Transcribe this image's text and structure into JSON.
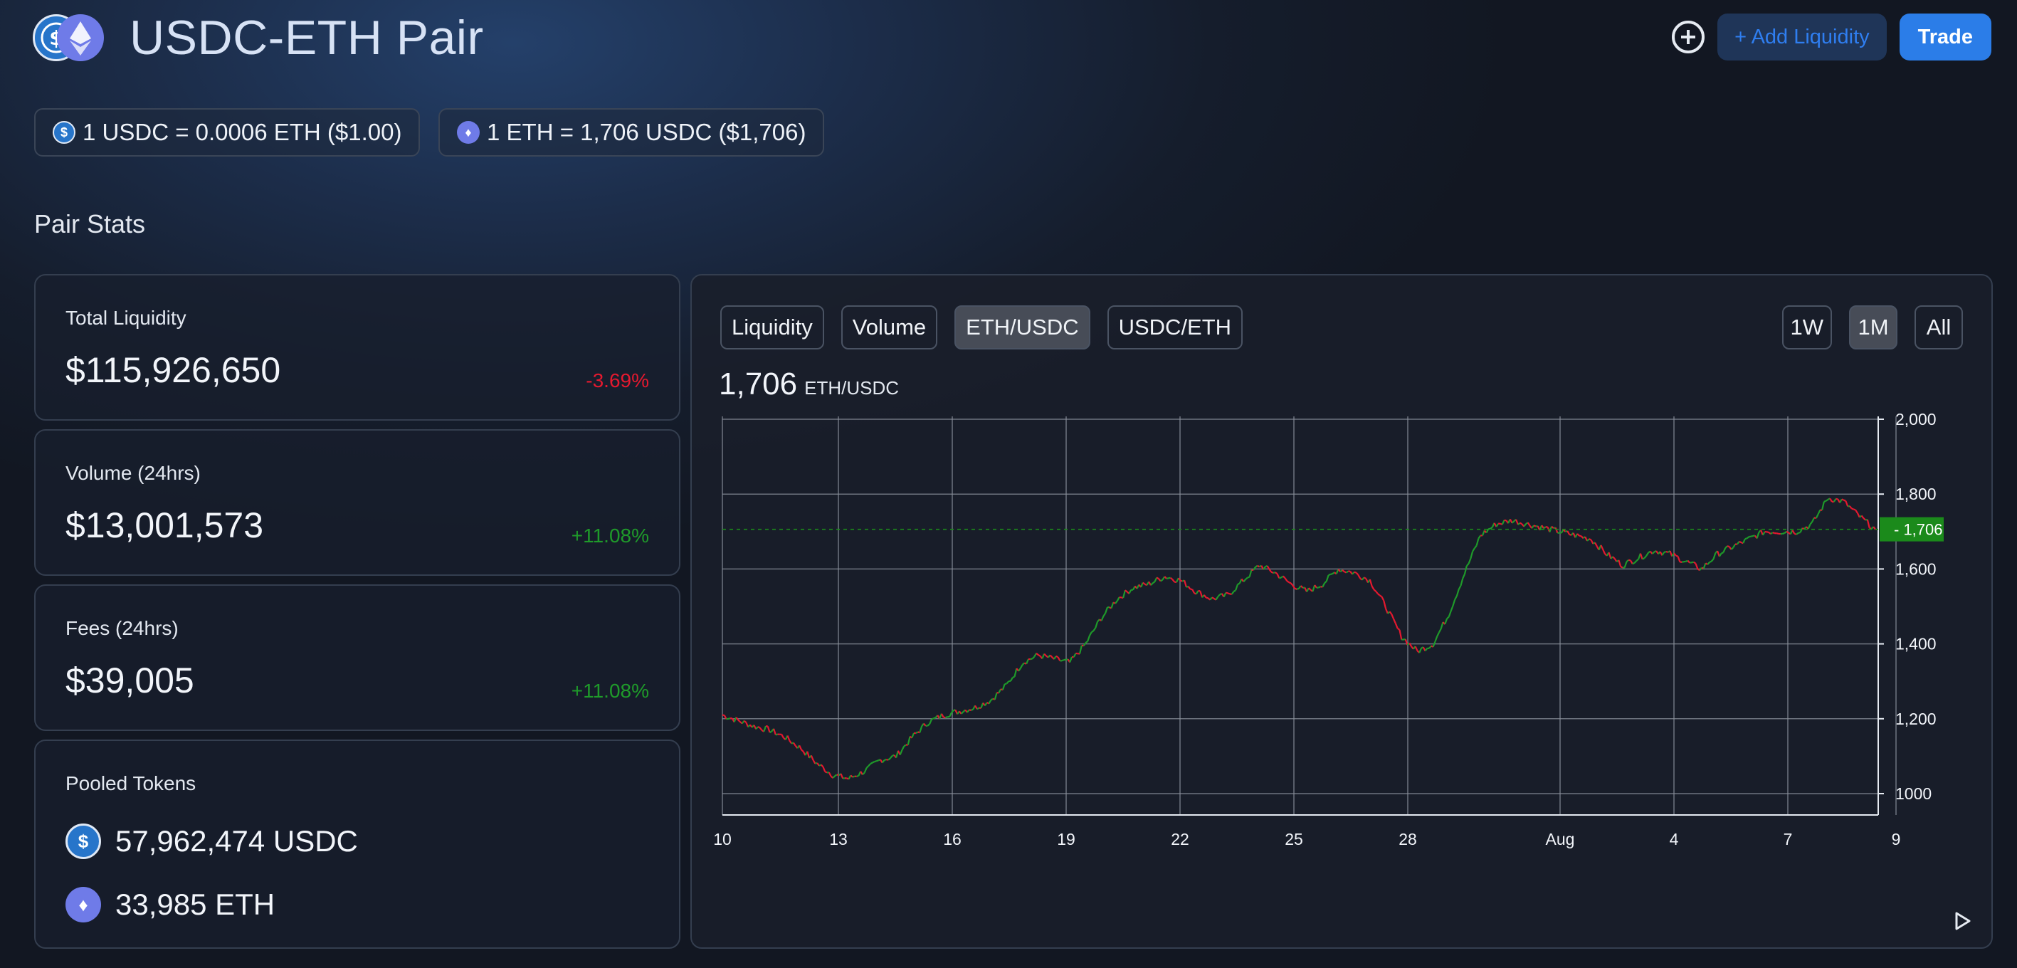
{
  "header": {
    "title": "USDC-ETH Pair",
    "add_liquidity_label": "+ Add Liquidity",
    "trade_label": "Trade"
  },
  "prices": {
    "usdc_rate": "1 USDC = 0.0006 ETH ($1.00)",
    "eth_rate": "1 ETH = 1,706 USDC ($1,706)"
  },
  "section_title": "Pair Stats",
  "stats": {
    "liquidity": {
      "label": "Total Liquidity",
      "value": "$115,926,650",
      "change": "-3.69%"
    },
    "volume": {
      "label": "Volume (24hrs)",
      "value": "$13,001,573",
      "change": "+11.08%"
    },
    "fees": {
      "label": "Fees (24hrs)",
      "value": "$39,005",
      "change": "+11.08%"
    }
  },
  "pooled": {
    "label": "Pooled Tokens",
    "usdc": "57,962,474 USDC",
    "eth": "33,985 ETH"
  },
  "chart_panel": {
    "tabs": [
      "Liquidity",
      "Volume",
      "ETH/USDC",
      "USDC/ETH"
    ],
    "active_tab": "ETH/USDC",
    "ranges": [
      "1W",
      "1M",
      "All"
    ],
    "active_range": "1M",
    "current_price": "1,706",
    "current_unit": "ETH/USDC"
  },
  "colors": {
    "up": "#1f9a2a",
    "down": "#e5192f",
    "accent": "#2b7de8",
    "price_marker": "#1b8a1b"
  },
  "icons": {
    "usdc": "usdc-coin-icon",
    "eth": "eth-coin-icon",
    "add": "plus-circle-icon",
    "play": "play-icon"
  },
  "chart_data": {
    "type": "line",
    "title": "",
    "xlabel": "",
    "ylabel": "",
    "ylim": [
      1000,
      2000
    ],
    "y_ticks": [
      "2,000",
      "1,800",
      "1,600",
      "1,400",
      "1,200",
      "1000"
    ],
    "y_tick_values": [
      2000,
      1800,
      1600,
      1400,
      1200,
      1000
    ],
    "x_ticks": [
      "10",
      "13",
      "16",
      "19",
      "22",
      "25",
      "28",
      "Aug",
      "4",
      "7",
      "9"
    ],
    "grid": true,
    "last_price_label": "1,706",
    "last_price": 1706,
    "series": [
      {
        "values": [
          1210,
          1195,
          1180,
          1170,
          1150,
          1120,
          1080,
          1050,
          1040,
          1060,
          1090,
          1100,
          1150,
          1190,
          1210,
          1220,
          1230,
          1250,
          1290,
          1350,
          1370,
          1360,
          1350,
          1400,
          1470,
          1520,
          1550,
          1560,
          1580,
          1570,
          1540,
          1520,
          1530,
          1570,
          1610,
          1590,
          1560,
          1540,
          1560,
          1600,
          1590,
          1570,
          1500,
          1420,
          1380,
          1400,
          1480,
          1590,
          1690,
          1720,
          1730,
          1720,
          1710,
          1700,
          1690,
          1680,
          1640,
          1610,
          1630,
          1650,
          1640,
          1620,
          1600,
          1640,
          1660,
          1680,
          1700,
          1700,
          1700,
          1720,
          1790,
          1780,
          1740,
          1706
        ]
      }
    ]
  }
}
